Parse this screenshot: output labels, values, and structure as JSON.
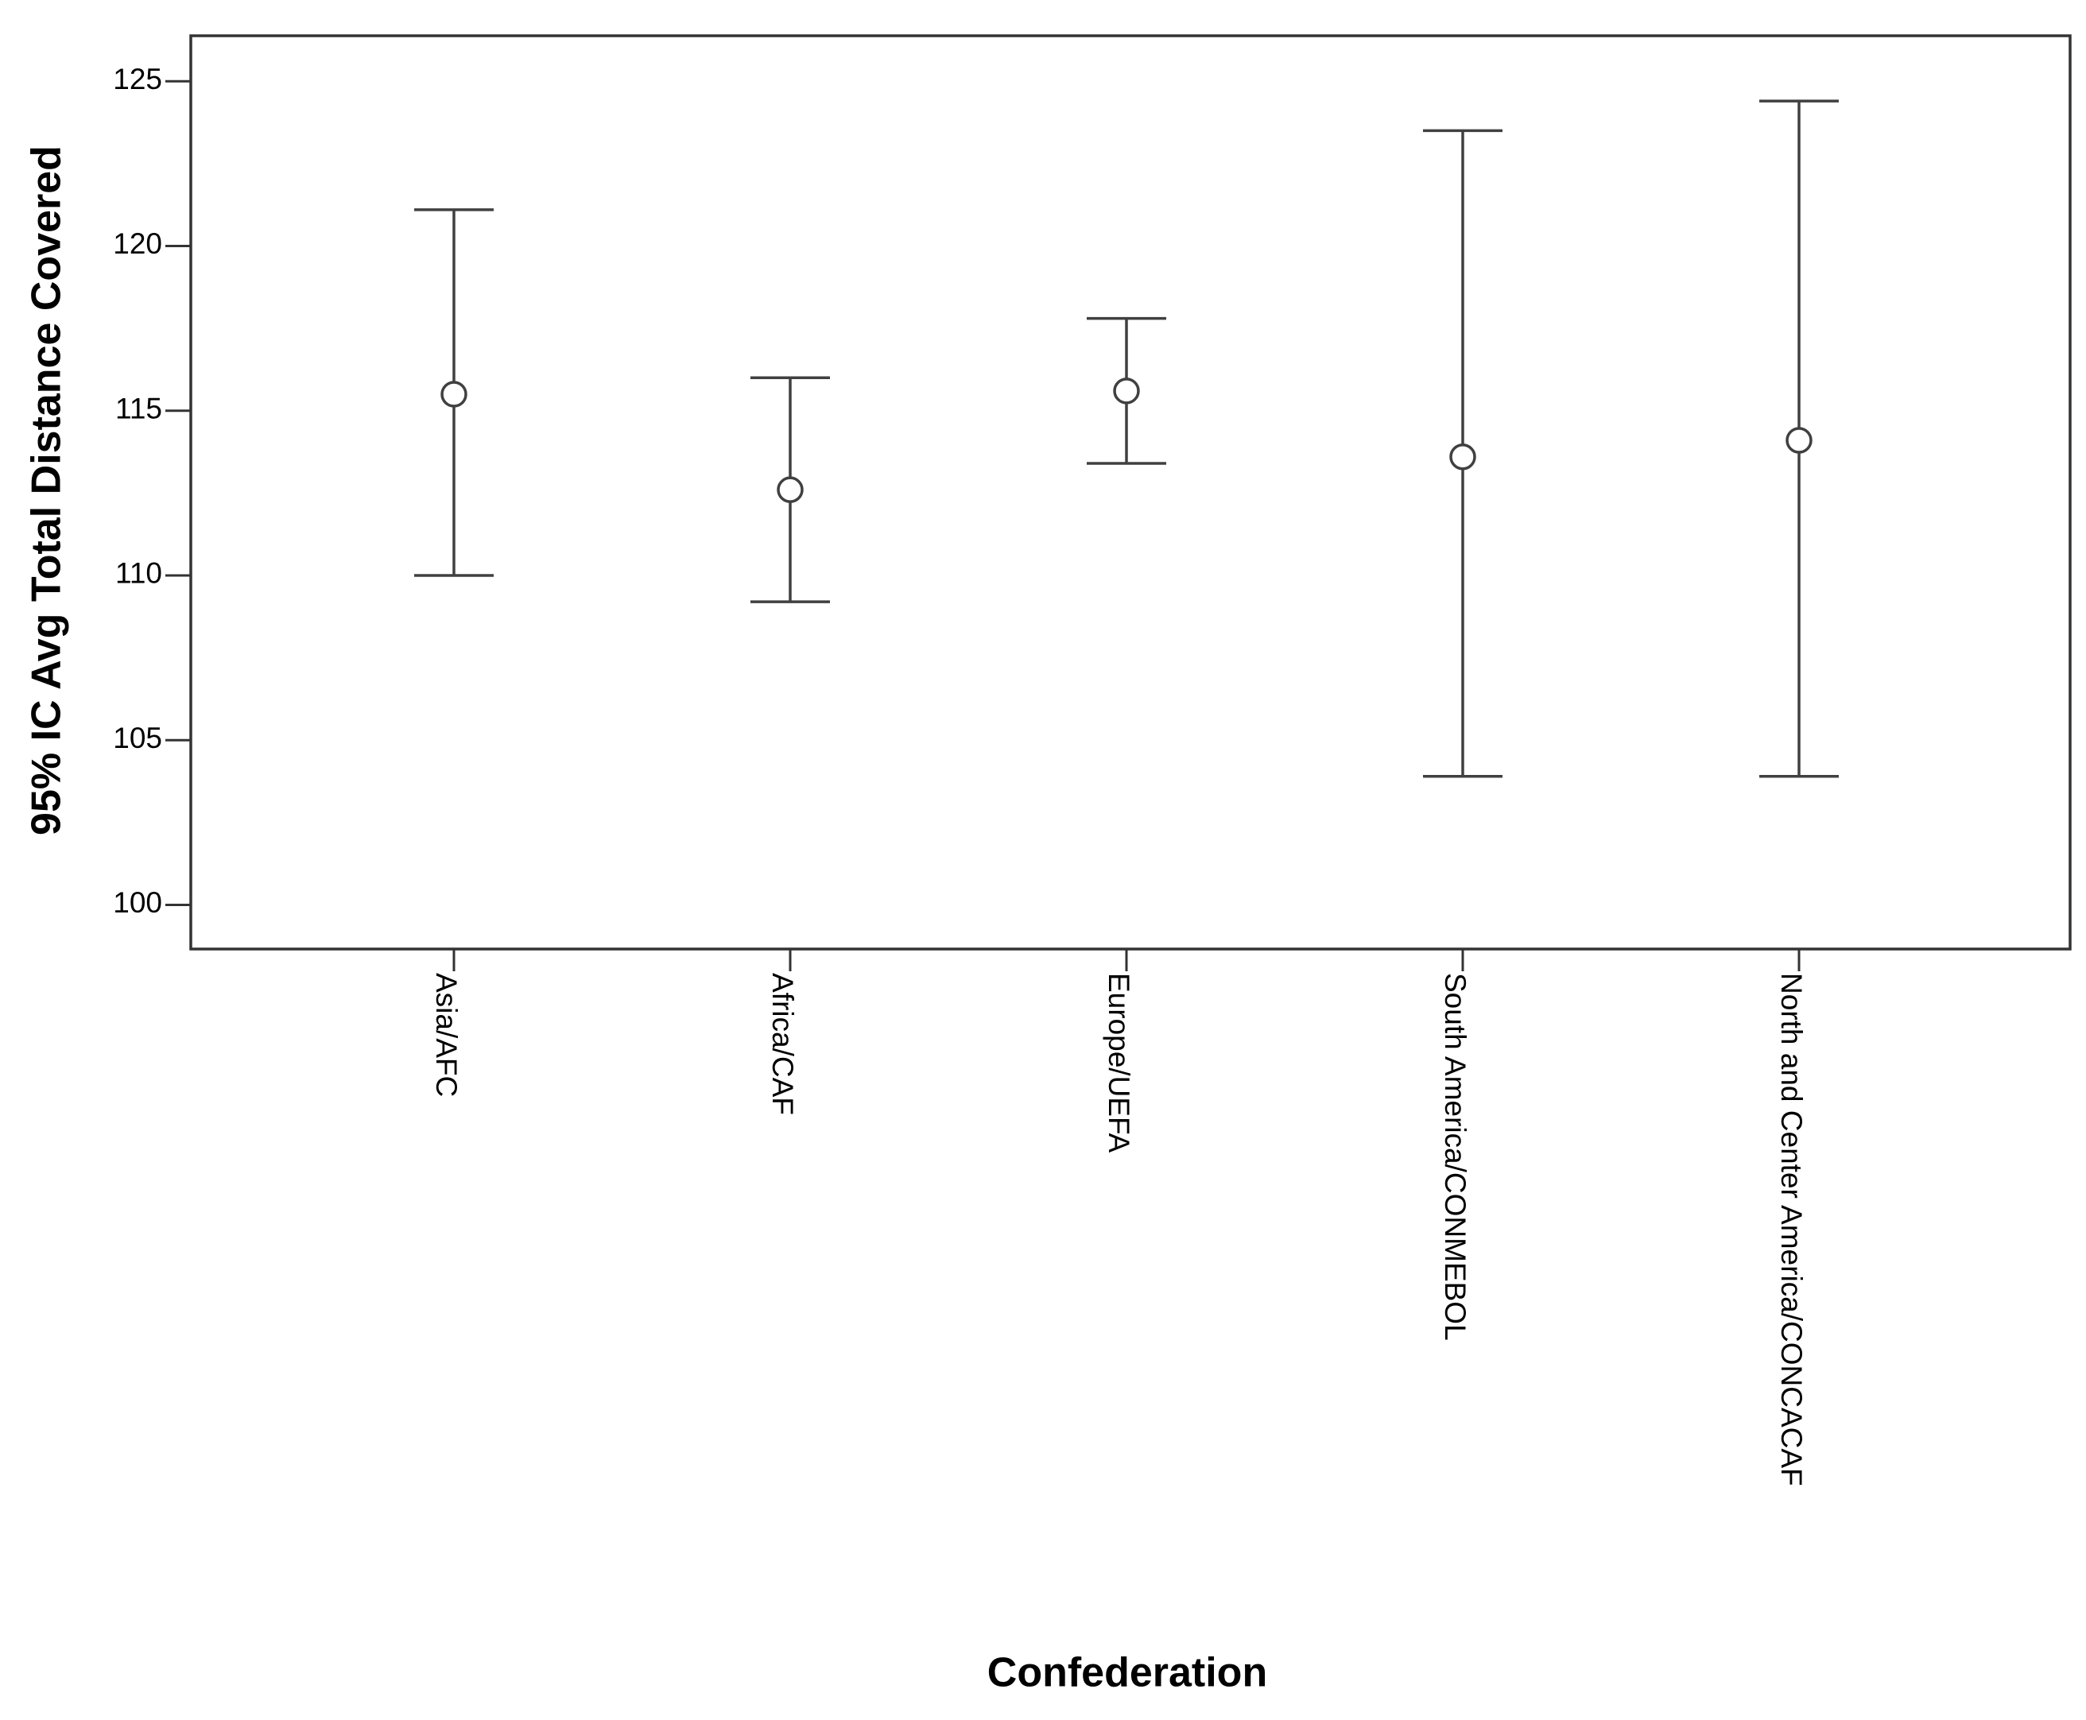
{
  "chart_data": {
    "type": "errorbar",
    "x_label": "Confederation",
    "y_label": "95% IC Avg Total Distance Covered",
    "categories": [
      "Asia/AFC",
      "Africa/CAF",
      "Europe/UEFA",
      "South America/CONMEBOL",
      "North and Center America/CONCACAF"
    ],
    "values": [
      115.5,
      112.6,
      115.6,
      113.6,
      114.1
    ],
    "lower": [
      110.0,
      109.2,
      113.4,
      103.9,
      103.9
    ],
    "upper": [
      121.1,
      116.0,
      117.8,
      123.5,
      124.4
    ],
    "color": "#404040",
    "ylim": [
      98.66,
      126.38
    ],
    "yticks": [
      100,
      105,
      110,
      115,
      120,
      125
    ],
    "grid": false
  }
}
